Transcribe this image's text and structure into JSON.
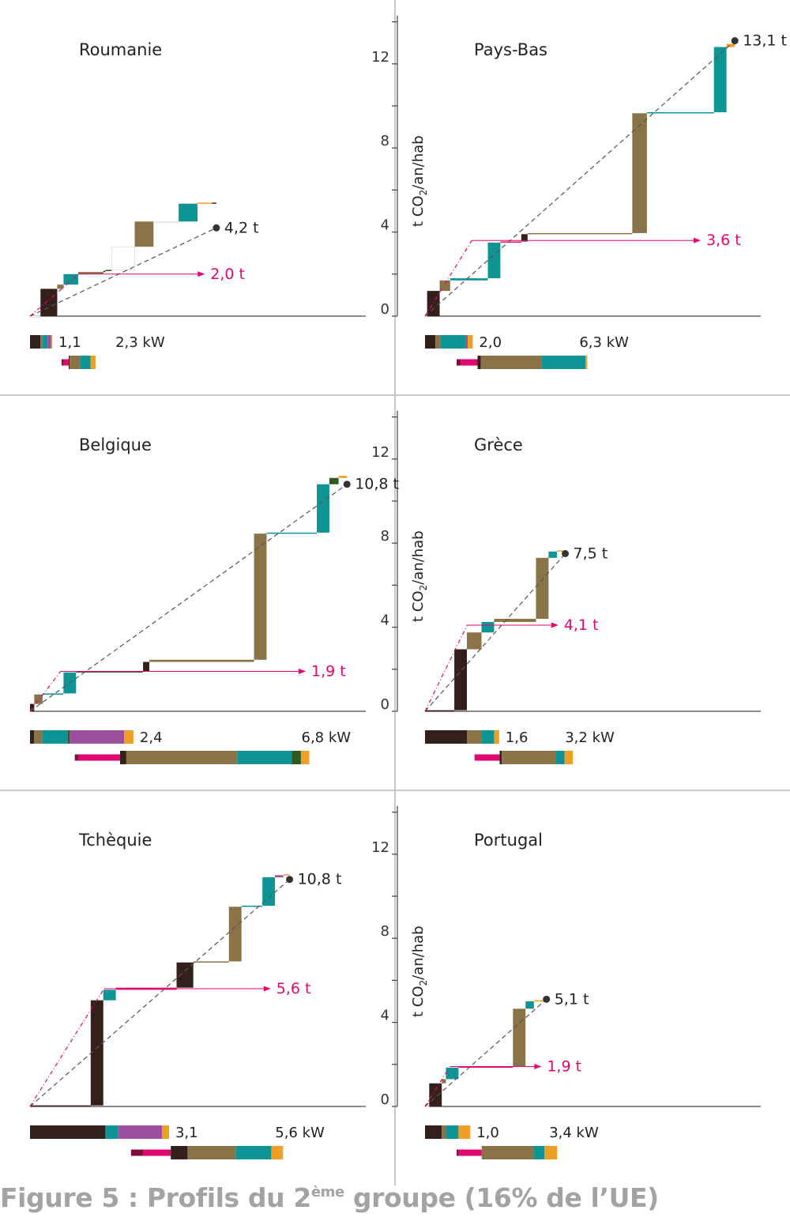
{
  "figure": {
    "caption_prefix": "Figure 5 : Profils du 2",
    "caption_sup": "ème",
    "caption_suffix": " groupe (16% de l’UE)"
  },
  "axis": {
    "label_main": "t CO",
    "label_sub": "2",
    "label_rest": "/an/hab",
    "ticks": [
      0,
      4,
      8,
      12
    ],
    "ylim": [
      0,
      14
    ]
  },
  "colors": {
    "dark_brown": "#33201a",
    "brown": "#8a7447",
    "teal": "#0e9494",
    "purple": "#9b4f9f",
    "orange": "#ef9f25",
    "magenta": "#e2066f",
    "maroon": "#7e0f3a",
    "green": "#2e5a1e",
    "marker": "#333333",
    "divider": "#b9b9b9",
    "dash": "#555555"
  },
  "chart_data": [
    {
      "type": "waterfall-step",
      "title": "Roumanie",
      "total_label": "4,2 t",
      "total": 4.2,
      "target_label": "2,0 t",
      "target": 2.0,
      "steps": [
        {
          "dx": 0.25,
          "dy": 0.0,
          "color": "white"
        },
        {
          "dx": 0.4,
          "dy": 1.3,
          "color": "dark_brown"
        },
        {
          "dx": 0.15,
          "dy": 0.2,
          "color": "brown"
        },
        {
          "dx": 0.35,
          "dy": 0.5,
          "color": "teal"
        },
        {
          "dx": 0.6,
          "dy": 0.1,
          "color": "brown"
        },
        {
          "dx": 0.05,
          "dy": 0.05,
          "color": "dark_brown"
        },
        {
          "dx": 0.15,
          "dy": 0.05,
          "color": "green"
        },
        {
          "dx": 0.55,
          "dy": 1.1,
          "color": "white"
        },
        {
          "dx": 0.45,
          "dy": 1.2,
          "color": "brown"
        },
        {
          "dx": 0.6,
          "dy": 0.0,
          "color": "white"
        },
        {
          "dx": 0.45,
          "dy": 0.85,
          "color": "teal"
        },
        {
          "dx": 0.35,
          "dy": 0.05,
          "color": "orange"
        },
        {
          "dx": 0.1,
          "dy": 0.0,
          "color": "dark_brown"
        }
      ],
      "bar1_label": "1,1",
      "bar1": [
        {
          "w": 0.25,
          "color": "dark_brown"
        },
        {
          "w": 0.05,
          "color": "brown"
        },
        {
          "w": 0.12,
          "color": "teal"
        },
        {
          "w": 0.08,
          "color": "purple"
        },
        {
          "w": 0.03,
          "color": "orange"
        }
      ],
      "bar2_label": "2,3 kW",
      "bar2": [
        {
          "w": 0.05,
          "color": "maroon"
        },
        {
          "w": 0.12,
          "color": "magenta"
        },
        {
          "w": 0.02,
          "color": "dark_brown"
        },
        {
          "w": 0.25,
          "color": "brown"
        },
        {
          "w": 0.25,
          "color": "teal"
        },
        {
          "w": 0.12,
          "color": "orange"
        }
      ]
    },
    {
      "type": "waterfall-step",
      "title": "Pays-Bas",
      "total_label": "13,1 t",
      "total": 13.1,
      "target_label": "3,6 t",
      "target": 3.6,
      "steps": [
        {
          "dx": 0.05,
          "dy": 0.0,
          "color": "white"
        },
        {
          "dx": 0.3,
          "dy": 1.2,
          "color": "dark_brown"
        },
        {
          "dx": 0.25,
          "dy": 0.5,
          "color": "brown"
        },
        {
          "dx": 0.9,
          "dy": 0.1,
          "color": "teal"
        },
        {
          "dx": 0.3,
          "dy": 1.7,
          "color": "teal"
        },
        {
          "dx": 0.5,
          "dy": 0.05,
          "color": "magenta"
        },
        {
          "dx": 0.15,
          "dy": 0.35,
          "color": "dark_brown"
        },
        {
          "dx": 2.5,
          "dy": 0.05,
          "color": "brown"
        },
        {
          "dx": 0.35,
          "dy": 5.7,
          "color": "brown"
        },
        {
          "dx": 1.6,
          "dy": 0.05,
          "color": "teal"
        },
        {
          "dx": 0.3,
          "dy": 3.1,
          "color": "teal"
        },
        {
          "dx": 0.2,
          "dy": 0.15,
          "color": "orange"
        }
      ],
      "bar1_label": "2,0",
      "bar1": [
        {
          "w": 0.25,
          "color": "dark_brown"
        },
        {
          "w": 0.12,
          "color": "brown"
        },
        {
          "w": 0.6,
          "color": "teal"
        },
        {
          "w": 0.05,
          "color": "purple"
        },
        {
          "w": 0.12,
          "color": "orange"
        }
      ],
      "bar2_label": "6,3 kW",
      "bar2": [
        {
          "w": 0.1,
          "color": "maroon"
        },
        {
          "w": 0.4,
          "color": "magenta"
        },
        {
          "w": 0.08,
          "color": "dark_brown"
        },
        {
          "w": 1.45,
          "color": "brown"
        },
        {
          "w": 1.05,
          "color": "teal"
        },
        {
          "w": 0.04,
          "color": "orange"
        }
      ]
    },
    {
      "type": "waterfall-step",
      "title": "Belgique",
      "total_label": "10,8 t",
      "total": 10.8,
      "target_label": "1,9 t",
      "target": 1.9,
      "steps": [
        {
          "dx": 0.1,
          "dy": 0.35,
          "color": "dark_brown"
        },
        {
          "dx": 0.2,
          "dy": 0.45,
          "color": "brown"
        },
        {
          "dx": 0.5,
          "dy": 0.05,
          "color": "teal"
        },
        {
          "dx": 0.3,
          "dy": 1.0,
          "color": "teal"
        },
        {
          "dx": 1.6,
          "dy": 0.05,
          "color": "green"
        },
        {
          "dx": 0.15,
          "dy": 0.45,
          "color": "dark_brown"
        },
        {
          "dx": 2.5,
          "dy": 0.1,
          "color": "brown"
        },
        {
          "dx": 0.3,
          "dy": 6.0,
          "color": "brown"
        },
        {
          "dx": 1.2,
          "dy": 0.05,
          "color": "teal"
        },
        {
          "dx": 0.3,
          "dy": 2.3,
          "color": "teal"
        },
        {
          "dx": 0.22,
          "dy": 0.3,
          "color": "green"
        },
        {
          "dx": 0.2,
          "dy": 0.1,
          "color": "orange"
        }
      ],
      "bar1_label": "2,4",
      "bar1": [
        {
          "w": 0.1,
          "color": "dark_brown"
        },
        {
          "w": 0.2,
          "color": "brown"
        },
        {
          "w": 0.6,
          "color": "teal"
        },
        {
          "w": 0.05,
          "color": "green"
        },
        {
          "w": 1.3,
          "color": "purple"
        },
        {
          "w": 0.22,
          "color": "orange"
        }
      ],
      "bar2_label": "6,8 kW",
      "bar2": [
        {
          "w": 0.08,
          "color": "maroon"
        },
        {
          "w": 1.0,
          "color": "magenta"
        },
        {
          "w": 0.15,
          "color": "dark_brown"
        },
        {
          "w": 2.65,
          "color": "brown"
        },
        {
          "w": 1.3,
          "color": "teal"
        },
        {
          "w": 0.22,
          "color": "green"
        },
        {
          "w": 0.2,
          "color": "orange"
        }
      ]
    },
    {
      "type": "waterfall-step",
      "title": "Grèce",
      "total_label": "7,5 t",
      "total": 7.5,
      "target_label": "4,1 t",
      "target": 4.1,
      "steps": [
        {
          "dx": 0.7,
          "dy": 0.05,
          "color": "dark_brown"
        },
        {
          "dx": 0.3,
          "dy": 2.9,
          "color": "dark_brown"
        },
        {
          "dx": 0.35,
          "dy": 0.8,
          "color": "brown"
        },
        {
          "dx": 0.3,
          "dy": 0.5,
          "color": "teal"
        },
        {
          "dx": 1.0,
          "dy": 0.15,
          "color": "brown"
        },
        {
          "dx": 0.3,
          "dy": 2.9,
          "color": "brown"
        },
        {
          "dx": 0.2,
          "dy": 0.3,
          "color": "teal"
        },
        {
          "dx": 0.2,
          "dy": 0.05,
          "color": "orange"
        }
      ],
      "bar1_label": "1,6",
      "bar1": [
        {
          "w": 1.0,
          "color": "dark_brown"
        },
        {
          "w": 0.35,
          "color": "brown"
        },
        {
          "w": 0.3,
          "color": "teal"
        },
        {
          "w": 0.12,
          "color": "orange"
        }
      ],
      "bar2_label": "3,2 kW",
      "bar2": [
        {
          "w": 0.6,
          "color": "magenta"
        },
        {
          "w": 0.05,
          "color": "dark_brown"
        },
        {
          "w": 1.3,
          "color": "brown"
        },
        {
          "w": 0.2,
          "color": "teal"
        },
        {
          "w": 0.2,
          "color": "orange"
        }
      ]
    },
    {
      "type": "waterfall-step",
      "title": "Tchèquie",
      "total_label": "10,8 t",
      "total": 10.8,
      "target_label": "5,6 t",
      "target": 5.6,
      "steps": [
        {
          "dx": 1.45,
          "dy": 0.05,
          "color": "dark_brown"
        },
        {
          "dx": 0.3,
          "dy": 5.0,
          "color": "dark_brown"
        },
        {
          "dx": 0.3,
          "dy": 0.5,
          "color": "teal"
        },
        {
          "dx": 1.45,
          "dy": 0.1,
          "color": "magenta"
        },
        {
          "dx": 0.4,
          "dy": 1.2,
          "color": "dark_brown"
        },
        {
          "dx": 0.85,
          "dy": 0.05,
          "color": "brown"
        },
        {
          "dx": 0.3,
          "dy": 2.6,
          "color": "brown"
        },
        {
          "dx": 0.5,
          "dy": 0.05,
          "color": "teal"
        },
        {
          "dx": 0.3,
          "dy": 1.35,
          "color": "teal"
        },
        {
          "dx": 0.2,
          "dy": 0.1,
          "color": "purple"
        },
        {
          "dx": 0.15,
          "dy": 0.05,
          "color": "orange"
        }
      ],
      "bar1_label": "3,1",
      "bar1": [
        {
          "w": 1.8,
          "color": "dark_brown"
        },
        {
          "w": 0.3,
          "color": "teal"
        },
        {
          "w": 1.05,
          "color": "purple"
        },
        {
          "w": 0.17,
          "color": "orange"
        }
      ],
      "bar2_label": "5,6 kW",
      "bar2": [
        {
          "w": 0.3,
          "color": "maroon"
        },
        {
          "w": 0.65,
          "color": "magenta"
        },
        {
          "w": 0.4,
          "color": "dark_brown"
        },
        {
          "w": 1.15,
          "color": "brown"
        },
        {
          "w": 0.85,
          "color": "teal"
        },
        {
          "w": 0.28,
          "color": "orange"
        }
      ]
    },
    {
      "type": "waterfall-step",
      "title": "Portugal",
      "total_label": "5,1 t",
      "total": 5.1,
      "target_label": "1,9 t",
      "target": 1.9,
      "steps": [
        {
          "dx": 0.1,
          "dy": 0.0,
          "color": "white"
        },
        {
          "dx": 0.3,
          "dy": 1.1,
          "color": "dark_brown"
        },
        {
          "dx": 0.1,
          "dy": 0.2,
          "color": "brown"
        },
        {
          "dx": 0.3,
          "dy": 0.55,
          "color": "teal"
        },
        {
          "dx": 1.3,
          "dy": 0.05,
          "color": "magenta"
        },
        {
          "dx": 0.3,
          "dy": 2.75,
          "color": "brown"
        },
        {
          "dx": 0.2,
          "dy": 0.35,
          "color": "teal"
        },
        {
          "dx": 0.3,
          "dy": 0.05,
          "color": "orange"
        }
      ],
      "bar1_label": "1,0",
      "bar1": [
        {
          "w": 0.4,
          "color": "dark_brown"
        },
        {
          "w": 0.1,
          "color": "brown"
        },
        {
          "w": 0.3,
          "color": "teal"
        },
        {
          "w": 0.28,
          "color": "orange"
        }
      ],
      "bar2_label": "3,4 kW",
      "bar2": [
        {
          "w": 0.05,
          "color": "maroon"
        },
        {
          "w": 0.55,
          "color": "magenta"
        },
        {
          "w": 1.25,
          "color": "brown"
        },
        {
          "w": 0.25,
          "color": "teal"
        },
        {
          "w": 0.3,
          "color": "orange"
        }
      ]
    }
  ]
}
